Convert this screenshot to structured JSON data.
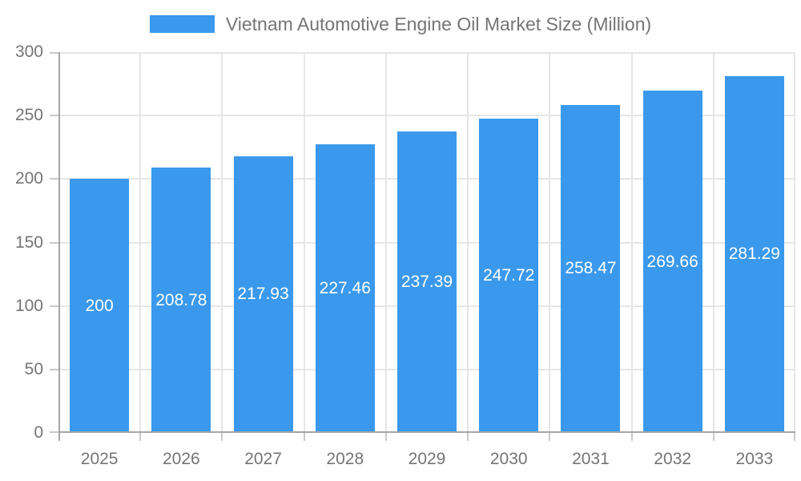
{
  "chart_data": {
    "type": "bar",
    "title": "Vietnam Automotive Engine Oil Market Size (Million)",
    "categories": [
      "2025",
      "2026",
      "2027",
      "2028",
      "2029",
      "2030",
      "2031",
      "2032",
      "2033"
    ],
    "values": [
      200,
      208.78,
      217.93,
      227.46,
      237.39,
      247.72,
      258.47,
      269.66,
      281.29
    ],
    "xlabel": "",
    "ylabel": "",
    "ylim": [
      0,
      300
    ],
    "yticks": [
      0,
      50,
      100,
      150,
      200,
      250,
      300
    ],
    "grid": true,
    "legend_position": "top",
    "bar_label_position": "center",
    "colors": {
      "bar": "#3a99ec",
      "axis_line": "#a6a6a6",
      "grid_line": "#e6e6e6",
      "tick_mark": "#c9c9c9",
      "axis_text": "#757575",
      "legend_text": "#757575",
      "bar_label_text": "#ffffff",
      "background": "#ffffff"
    }
  }
}
